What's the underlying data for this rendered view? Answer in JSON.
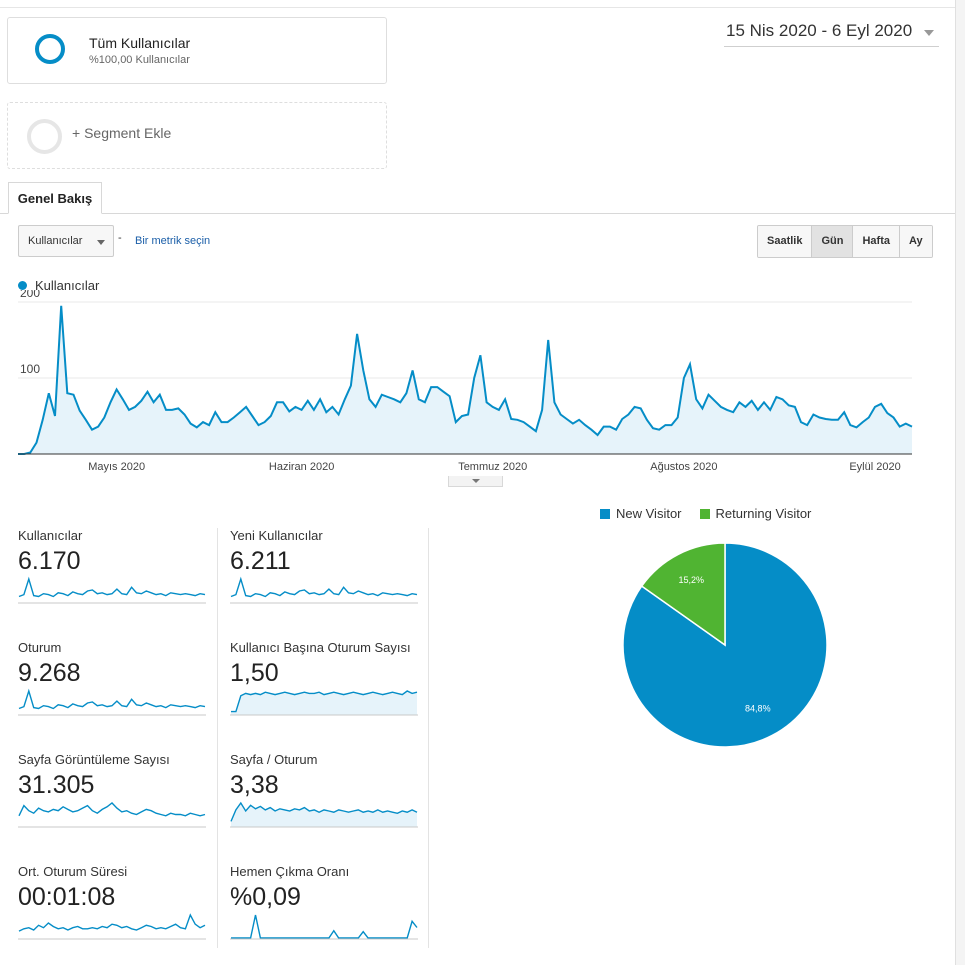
{
  "segments": {
    "active": {
      "name": "Tüm Kullanıcılar",
      "sub": "%100,00 Kullanıcılar"
    },
    "add_label": "+ Segment Ekle"
  },
  "date_range": "15 Nis 2020 - 6 Eyl 2020",
  "tab": "Genel Bakış",
  "metric_select": "Kullanıcılar",
  "dash": "-",
  "pick_metric": "Bir metrik seçin",
  "periods": [
    "Saatlik",
    "Gün",
    "Hafta",
    "Ay"
  ],
  "active_period": "Gün",
  "colors": {
    "accent": "#058dc7",
    "returning": "#50b432"
  },
  "chart_data": [
    {
      "type": "area",
      "series": [
        {
          "name": "Kullanıcılar",
          "values": [
            0,
            0,
            2,
            15,
            45,
            80,
            50,
            195,
            80,
            78,
            57,
            45,
            32,
            36,
            48,
            68,
            85,
            72,
            58,
            62,
            70,
            82,
            68,
            78,
            58,
            58,
            60,
            52,
            40,
            35,
            42,
            38,
            55,
            42,
            42,
            48,
            55,
            62,
            50,
            38,
            42,
            50,
            68,
            68,
            56,
            62,
            58,
            70,
            58,
            72,
            55,
            62,
            52,
            72,
            90,
            158,
            110,
            72,
            62,
            78,
            75,
            72,
            68,
            80,
            110,
            72,
            68,
            88,
            88,
            82,
            76,
            42,
            50,
            52,
            100,
            130,
            68,
            62,
            58,
            72,
            46,
            45,
            42,
            36,
            30,
            58,
            150,
            68,
            52,
            46,
            40,
            45,
            38,
            32,
            25,
            36,
            36,
            32,
            46,
            52,
            62,
            60,
            45,
            34,
            32,
            38,
            38,
            48,
            100,
            118,
            72,
            60,
            78,
            70,
            62,
            58,
            55,
            68,
            62,
            70,
            58,
            68,
            58,
            75,
            72,
            64,
            62,
            42,
            38,
            52,
            48,
            46,
            45,
            45,
            55,
            38,
            35,
            42,
            48,
            62,
            66,
            54,
            48,
            36,
            40,
            36
          ]
        }
      ],
      "x_tick_labels": [
        "Mayıs 2020",
        "Haziran 2020",
        "Temmuz 2020",
        "Ağustos 2020",
        "Eylül 2020"
      ],
      "y_tick_labels": [
        "200",
        "100"
      ],
      "ylim": [
        0,
        200
      ],
      "grid": true
    },
    {
      "type": "pie",
      "series": [
        {
          "name": "New Visitor",
          "value": 84.8,
          "label": "84,8%",
          "color": "#058dc7"
        },
        {
          "name": "Returning Visitor",
          "value": 15.2,
          "label": "15,2%",
          "color": "#50b432"
        }
      ],
      "legend": "top"
    }
  ],
  "stats": [
    {
      "name": "Kullanıcılar",
      "value": "6.170",
      "spark": [
        6,
        8,
        25,
        7,
        6,
        9,
        8,
        6,
        10,
        9,
        7,
        11,
        9,
        8,
        12,
        13,
        9,
        10,
        8,
        9,
        14,
        9,
        8,
        16,
        10,
        9,
        12,
        10,
        8,
        9,
        7,
        10,
        9,
        8,
        9,
        8,
        7,
        9,
        8
      ]
    },
    {
      "name": "Yeni Kullanıcılar",
      "value": "6.211",
      "spark": [
        6,
        8,
        25,
        7,
        6,
        9,
        8,
        6,
        10,
        9,
        7,
        11,
        9,
        8,
        12,
        13,
        9,
        10,
        8,
        9,
        14,
        9,
        8,
        16,
        10,
        9,
        12,
        10,
        8,
        9,
        7,
        10,
        9,
        8,
        9,
        8,
        7,
        9,
        8
      ]
    },
    {
      "name": "Oturum",
      "value": "9.268",
      "spark": [
        6,
        8,
        25,
        7,
        6,
        9,
        8,
        6,
        10,
        9,
        7,
        11,
        9,
        8,
        12,
        13,
        9,
        10,
        8,
        9,
        14,
        9,
        8,
        16,
        10,
        9,
        12,
        10,
        8,
        9,
        7,
        10,
        9,
        8,
        9,
        8,
        7,
        9,
        8
      ]
    },
    {
      "name": "Kullanıcı Başına Oturum Sayısı",
      "value": "1,50",
      "spark": [
        2,
        2,
        15,
        17,
        16,
        17,
        16,
        18,
        17,
        16,
        17,
        18,
        17,
        16,
        17,
        18,
        17,
        17,
        18,
        16,
        17,
        18,
        17,
        16,
        17,
        18,
        17,
        16,
        17,
        18,
        17,
        16,
        17,
        18,
        17,
        16,
        19,
        17,
        18
      ]
    },
    {
      "name": "Sayfa Görüntüleme Sayısı",
      "value": "31.305",
      "spark": [
        8,
        16,
        12,
        10,
        14,
        12,
        11,
        13,
        12,
        15,
        13,
        11,
        12,
        14,
        16,
        12,
        10,
        13,
        15,
        18,
        14,
        11,
        12,
        10,
        9,
        11,
        13,
        12,
        10,
        9,
        8,
        10,
        9,
        9,
        8,
        10,
        9,
        8,
        9
      ]
    },
    {
      "name": "Sayfa / Oturum",
      "value": "3,38",
      "spark": [
        4,
        14,
        20,
        13,
        18,
        15,
        17,
        14,
        16,
        13,
        15,
        14,
        13,
        15,
        14,
        16,
        13,
        14,
        12,
        14,
        13,
        12,
        14,
        13,
        12,
        13,
        14,
        12,
        13,
        12,
        14,
        12,
        13,
        12,
        11,
        13,
        12,
        14,
        12
      ]
    },
    {
      "name": "Ort. Oturum Süresi",
      "value": "00:01:08",
      "spark": [
        6,
        8,
        9,
        7,
        11,
        9,
        13,
        10,
        8,
        9,
        7,
        9,
        10,
        8,
        8,
        9,
        8,
        10,
        9,
        12,
        11,
        9,
        10,
        8,
        7,
        9,
        11,
        10,
        8,
        9,
        8,
        10,
        12,
        9,
        8,
        20,
        12,
        9,
        11
      ]
    },
    {
      "name": "Hemen Çıkma Oranı",
      "value": "%0,09",
      "spark": [
        0,
        0,
        0,
        0,
        0,
        22,
        0,
        0,
        0,
        0,
        0,
        0,
        0,
        0,
        0,
        0,
        0,
        0,
        0,
        0,
        0,
        7,
        0,
        0,
        0,
        0,
        0,
        6,
        0,
        0,
        0,
        0,
        0,
        0,
        0,
        0,
        0,
        16,
        10
      ]
    }
  ]
}
